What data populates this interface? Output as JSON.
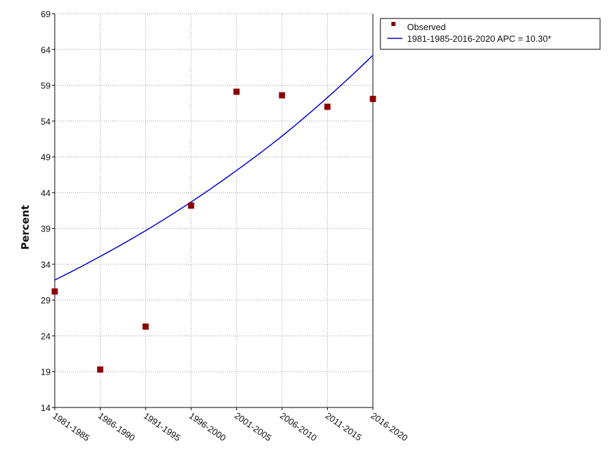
{
  "chart_data": {
    "type": "scatter",
    "title": "",
    "xlabel": "",
    "ylabel": "Percent",
    "categories": [
      "1981-1985",
      "1986-1990",
      "1991-1995",
      "1996-2000",
      "2001-2005",
      "2006-2010",
      "2011-2015",
      "2016-2020"
    ],
    "ylim": [
      14,
      69
    ],
    "yticks": [
      14,
      19,
      24,
      29,
      34,
      39,
      44,
      49,
      54,
      59,
      64,
      69
    ],
    "grid": true,
    "legend_position": "top-right",
    "series": [
      {
        "name": "Observed",
        "kind": "points",
        "marker": "square",
        "color": "#8b0000",
        "values": [
          30.2,
          19.3,
          25.3,
          42.2,
          58.1,
          57.6,
          56.0,
          57.1
        ]
      },
      {
        "name": "1981-1985-2016-2020 APC  = 10.30*",
        "kind": "line",
        "color": "#0000cc",
        "values": [
          31.8,
          35.1,
          38.7,
          42.7,
          47.1,
          51.9,
          57.3,
          63.2
        ]
      }
    ]
  }
}
